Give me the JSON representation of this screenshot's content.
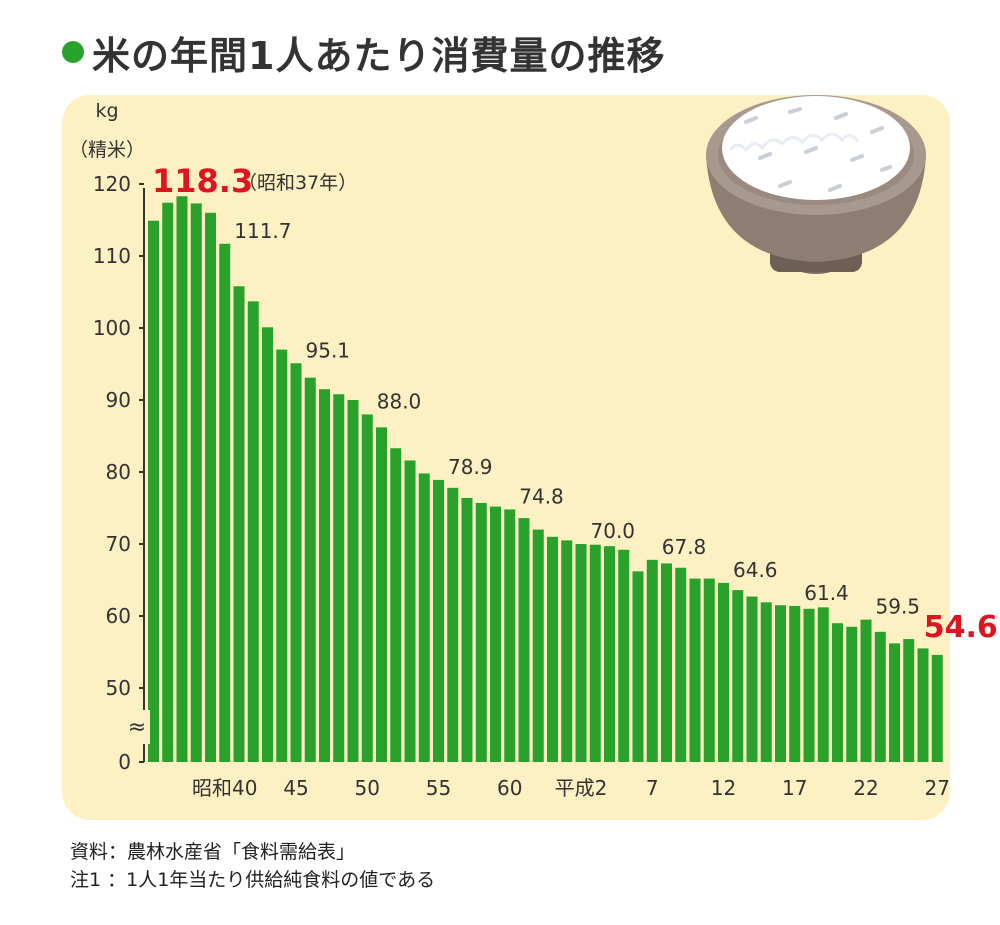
{
  "title": "米の年間1人あたり消費量の推移",
  "colors": {
    "bar": "#2aa12a",
    "highlight": "#e0141e",
    "panel": "#fdf0c2",
    "axis": "#333333"
  },
  "notes": [
    "資料：農林水産省「食料需給表」",
    "注1 ：1人1年当たり供給純食料の値である"
  ],
  "chart_data": {
    "type": "bar",
    "title": "米の年間1人あたり消費量の推移",
    "ylabel_unit": "kg",
    "ylabel_note": "（精米）",
    "ylim": [
      0,
      120
    ],
    "axis_break": "≈",
    "y_ticks": [
      0,
      50,
      60,
      70,
      80,
      90,
      100,
      110,
      120
    ],
    "categories": [
      "昭和35",
      "36",
      "37",
      "38",
      "39",
      "40",
      "41",
      "42",
      "43",
      "44",
      "45",
      "46",
      "47",
      "48",
      "49",
      "50",
      "51",
      "52",
      "53",
      "54",
      "55",
      "56",
      "57",
      "58",
      "59",
      "60",
      "61",
      "62",
      "63",
      "平成1",
      "2",
      "3",
      "4",
      "5",
      "6",
      "7",
      "8",
      "9",
      "10",
      "11",
      "12",
      "13",
      "14",
      "15",
      "16",
      "17",
      "18",
      "19",
      "20",
      "21",
      "22",
      "23",
      "24",
      "25",
      "26",
      "27"
    ],
    "values": [
      114.9,
      117.4,
      118.3,
      117.3,
      116.0,
      111.7,
      105.8,
      103.7,
      100.1,
      97.0,
      95.1,
      93.1,
      91.5,
      90.8,
      90.0,
      88.0,
      86.2,
      83.3,
      81.6,
      79.8,
      78.9,
      77.8,
      76.4,
      75.7,
      75.2,
      74.8,
      73.6,
      72.0,
      71.0,
      70.5,
      70.0,
      69.9,
      69.7,
      69.2,
      66.2,
      67.8,
      67.3,
      66.7,
      65.2,
      65.2,
      64.6,
      63.6,
      62.7,
      61.9,
      61.5,
      61.4,
      61.0,
      61.2,
      59.0,
      58.5,
      59.5,
      57.8,
      56.2,
      56.8,
      55.5,
      54.6
    ],
    "x_tick_labels": [
      {
        "index": 5,
        "label": "昭和40"
      },
      {
        "index": 10,
        "label": "45"
      },
      {
        "index": 15,
        "label": "50"
      },
      {
        "index": 20,
        "label": "55"
      },
      {
        "index": 25,
        "label": "60"
      },
      {
        "index": 30,
        "label": "平成2"
      },
      {
        "index": 35,
        "label": "7"
      },
      {
        "index": 40,
        "label": "12"
      },
      {
        "index": 45,
        "label": "17"
      },
      {
        "index": 50,
        "label": "22"
      },
      {
        "index": 55,
        "label": "27"
      }
    ],
    "data_labels": [
      {
        "index": 2,
        "text": "118.3",
        "highlight": true,
        "note": "（昭和37年）"
      },
      {
        "index": 5,
        "text": "111.7"
      },
      {
        "index": 10,
        "text": "95.1"
      },
      {
        "index": 15,
        "text": "88.0"
      },
      {
        "index": 20,
        "text": "78.9"
      },
      {
        "index": 25,
        "text": "74.8"
      },
      {
        "index": 30,
        "text": "70.0"
      },
      {
        "index": 35,
        "text": "67.8"
      },
      {
        "index": 40,
        "text": "64.6"
      },
      {
        "index": 45,
        "text": "61.4"
      },
      {
        "index": 50,
        "text": "59.5"
      },
      {
        "index": 55,
        "text": "54.6",
        "highlight": true
      }
    ]
  }
}
